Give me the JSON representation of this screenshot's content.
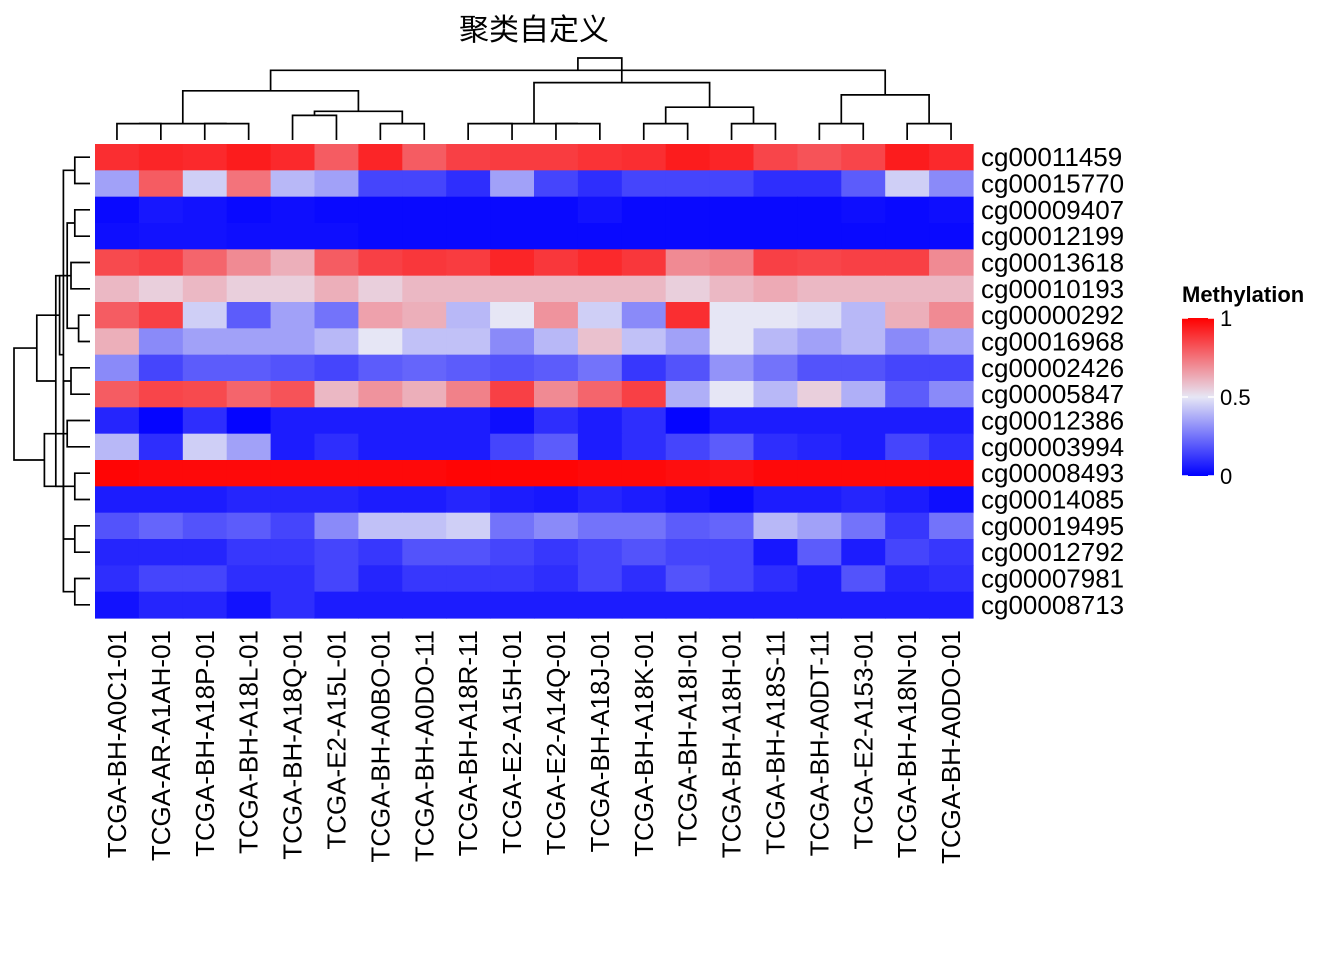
{
  "chart_data": {
    "type": "heatmap",
    "title": "聚类自定义",
    "legend": {
      "title": "Methylation",
      "ticks": [
        1,
        0.5,
        0
      ],
      "position": "right",
      "colors": {
        "low": "#0000FF",
        "mid": "#E6E6F5",
        "high": "#FF0000"
      }
    },
    "rows": [
      "cg00011459",
      "cg00015770",
      "cg00009407",
      "cg00012199",
      "cg00013618",
      "cg00010193",
      "cg00000292",
      "cg00016968",
      "cg00002426",
      "cg00005847",
      "cg00012386",
      "cg00003994",
      "cg00008493",
      "cg00014085",
      "cg00019495",
      "cg00012792",
      "cg00007981",
      "cg00008713"
    ],
    "columns": [
      "TCGA-BH-A0C1-01",
      "TCGA-AR-A1AH-01",
      "TCGA-BH-A18P-01",
      "TCGA-BH-A18L-01",
      "TCGA-BH-A18Q-01",
      "TCGA-E2-A15L-01",
      "TCGA-BH-A0BO-01",
      "TCGA-BH-A0DO-11",
      "TCGA-BH-A18R-11",
      "TCGA-E2-A15H-01",
      "TCGA-E2-A14Q-01",
      "TCGA-BH-A18J-01",
      "TCGA-BH-A18K-01",
      "TCGA-BH-A18I-01",
      "TCGA-BH-A18H-01",
      "TCGA-BH-A18S-11",
      "TCGA-BH-A0DT-11",
      "TCGA-E2-A153-01",
      "TCGA-BH-A18N-01",
      "TCGA-BH-A0DO-01"
    ],
    "values": [
      [
        0.9,
        0.92,
        0.91,
        0.94,
        0.91,
        0.8,
        0.92,
        0.8,
        0.86,
        0.87,
        0.87,
        0.89,
        0.9,
        0.94,
        0.92,
        0.85,
        0.82,
        0.85,
        0.94,
        0.91
      ],
      [
        0.35,
        0.8,
        0.45,
        0.75,
        0.4,
        0.35,
        0.15,
        0.15,
        0.1,
        0.35,
        0.15,
        0.1,
        0.15,
        0.15,
        0.15,
        0.1,
        0.1,
        0.2,
        0.45,
        0.3
      ],
      [
        0.02,
        0.05,
        0.04,
        0.02,
        0.03,
        0.02,
        0.02,
        0.02,
        0.02,
        0.02,
        0.02,
        0.04,
        0.02,
        0.02,
        0.02,
        0.02,
        0.02,
        0.03,
        0.02,
        0.03
      ],
      [
        0.03,
        0.04,
        0.04,
        0.03,
        0.03,
        0.03,
        0.02,
        0.02,
        0.02,
        0.02,
        0.02,
        0.02,
        0.02,
        0.02,
        0.02,
        0.02,
        0.02,
        0.02,
        0.02,
        0.02
      ],
      [
        0.84,
        0.86,
        0.78,
        0.7,
        0.62,
        0.8,
        0.86,
        0.88,
        0.87,
        0.92,
        0.88,
        0.91,
        0.88,
        0.7,
        0.72,
        0.86,
        0.85,
        0.86,
        0.86,
        0.7
      ],
      [
        0.6,
        0.55,
        0.6,
        0.55,
        0.55,
        0.62,
        0.55,
        0.6,
        0.6,
        0.6,
        0.6,
        0.6,
        0.6,
        0.55,
        0.6,
        0.63,
        0.6,
        0.6,
        0.6,
        0.6
      ],
      [
        0.8,
        0.86,
        0.45,
        0.2,
        0.35,
        0.25,
        0.65,
        0.62,
        0.4,
        0.5,
        0.68,
        0.45,
        0.3,
        0.9,
        0.5,
        0.5,
        0.48,
        0.4,
        0.62,
        0.7
      ],
      [
        0.62,
        0.3,
        0.35,
        0.35,
        0.35,
        0.4,
        0.5,
        0.42,
        0.42,
        0.3,
        0.4,
        0.58,
        0.42,
        0.35,
        0.5,
        0.4,
        0.35,
        0.4,
        0.3,
        0.35
      ],
      [
        0.3,
        0.15,
        0.2,
        0.2,
        0.18,
        0.15,
        0.2,
        0.22,
        0.2,
        0.18,
        0.2,
        0.25,
        0.12,
        0.18,
        0.32,
        0.25,
        0.18,
        0.18,
        0.15,
        0.15
      ],
      [
        0.8,
        0.85,
        0.84,
        0.78,
        0.82,
        0.6,
        0.68,
        0.62,
        0.72,
        0.86,
        0.7,
        0.78,
        0.86,
        0.38,
        0.5,
        0.4,
        0.55,
        0.38,
        0.2,
        0.3
      ],
      [
        0.08,
        0.01,
        0.1,
        0.01,
        0.06,
        0.06,
        0.06,
        0.06,
        0.06,
        0.03,
        0.1,
        0.06,
        0.1,
        0.01,
        0.06,
        0.06,
        0.06,
        0.06,
        0.06,
        0.06
      ],
      [
        0.4,
        0.1,
        0.45,
        0.35,
        0.06,
        0.1,
        0.06,
        0.06,
        0.06,
        0.15,
        0.2,
        0.06,
        0.1,
        0.15,
        0.2,
        0.1,
        0.08,
        0.06,
        0.15,
        0.1
      ],
      [
        0.99,
        0.98,
        0.98,
        0.98,
        0.98,
        0.98,
        0.98,
        0.98,
        0.99,
        0.99,
        0.99,
        0.98,
        0.98,
        0.97,
        0.96,
        0.98,
        0.98,
        0.98,
        0.98,
        0.98
      ],
      [
        0.06,
        0.06,
        0.06,
        0.08,
        0.08,
        0.08,
        0.06,
        0.06,
        0.08,
        0.06,
        0.05,
        0.08,
        0.06,
        0.04,
        0.02,
        0.06,
        0.06,
        0.08,
        0.06,
        0.03
      ],
      [
        0.18,
        0.22,
        0.18,
        0.2,
        0.15,
        0.3,
        0.42,
        0.42,
        0.45,
        0.25,
        0.3,
        0.25,
        0.25,
        0.2,
        0.22,
        0.4,
        0.35,
        0.25,
        0.12,
        0.25
      ],
      [
        0.08,
        0.08,
        0.08,
        0.12,
        0.12,
        0.15,
        0.12,
        0.18,
        0.18,
        0.15,
        0.12,
        0.15,
        0.18,
        0.15,
        0.15,
        0.05,
        0.2,
        0.06,
        0.15,
        0.12
      ],
      [
        0.1,
        0.15,
        0.15,
        0.1,
        0.1,
        0.15,
        0.08,
        0.12,
        0.12,
        0.12,
        0.1,
        0.15,
        0.1,
        0.18,
        0.15,
        0.1,
        0.06,
        0.18,
        0.08,
        0.1
      ],
      [
        0.04,
        0.08,
        0.08,
        0.04,
        0.1,
        0.06,
        0.06,
        0.06,
        0.06,
        0.06,
        0.06,
        0.06,
        0.06,
        0.06,
        0.06,
        0.06,
        0.06,
        0.06,
        0.06,
        0.06
      ]
    ],
    "col_dendrogram": [
      [
        0,
        1,
        0.2
      ],
      [
        2,
        3,
        0.2
      ],
      [
        4,
        5,
        0.3
      ],
      [
        6,
        7,
        0.2
      ],
      [
        8,
        9,
        0.2
      ],
      [
        10,
        11,
        0.2
      ],
      [
        12,
        13,
        0.2
      ],
      [
        14,
        15,
        0.2
      ],
      [
        16,
        17,
        0.2
      ],
      [
        18,
        19,
        0.2
      ],
      [
        20,
        21,
        0.2
      ],
      [
        22,
        23,
        0.35
      ],
      [
        24,
        25,
        0.2
      ],
      [
        26,
        27,
        0.4
      ],
      [
        28,
        29,
        0.55
      ],
      [
        30,
        31,
        0.6
      ],
      [
        32,
        33,
        0.7
      ],
      [
        34,
        35,
        0.85
      ],
      [
        36,
        37,
        1.0
      ]
    ],
    "row_dendrogram": [
      [
        6,
        7,
        0.15
      ],
      [
        2,
        3,
        0.2
      ],
      [
        0,
        1,
        0.2
      ],
      [
        14,
        15,
        0.2
      ],
      [
        4,
        5,
        0.25
      ],
      [
        12,
        13,
        0.2
      ],
      [
        16,
        17,
        0.2
      ],
      [
        8,
        9,
        0.25
      ],
      [
        10,
        11,
        0.3
      ],
      [
        18,
        19,
        0.3
      ],
      [
        20,
        21,
        0.35
      ],
      [
        24,
        25,
        0.35
      ],
      [
        27,
        28,
        0.4
      ],
      [
        22,
        23,
        0.45
      ],
      [
        26,
        29,
        0.6
      ],
      [
        30,
        31,
        0.7
      ],
      [
        32,
        33,
        1.0
      ]
    ]
  }
}
